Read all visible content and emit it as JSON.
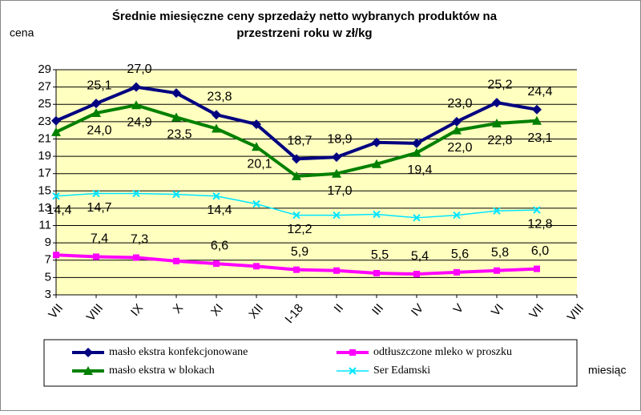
{
  "chart_data": {
    "type": "line",
    "title": [
      "Średnie miesięczne ceny sprzedaży netto  wybranych produktów na",
      "przestrzeni roku w zł/kg"
    ],
    "y_label": "cena",
    "x_label": "miesiąc",
    "categories": [
      "VII",
      "VIII",
      "IX",
      "X",
      "XI",
      "XII",
      "I-18",
      "II",
      "III",
      "IV",
      "V",
      "VI",
      "VII",
      "VIII"
    ],
    "ylim": [
      3,
      29
    ],
    "yticks": [
      3,
      5,
      7,
      9,
      11,
      13,
      15,
      17,
      19,
      21,
      23,
      25,
      27,
      29
    ],
    "grid": true,
    "series": [
      {
        "name": "masło ekstra konfekcjonowane",
        "color": "#000080",
        "marker": "diamond",
        "values": [
          23.1,
          25.1,
          27.0,
          26.3,
          23.8,
          22.7,
          18.7,
          18.9,
          20.6,
          20.5,
          23.0,
          25.2,
          24.4,
          null
        ],
        "value_labels": [
          null,
          "25,1",
          "27,0",
          null,
          "23,8",
          null,
          "18,7",
          "18,9",
          null,
          null,
          "23,0",
          "25,2",
          "24,4",
          null
        ]
      },
      {
        "name": "odtłuszczone mleko w proszku",
        "color": "#ff00ff",
        "marker": "square",
        "values": [
          7.6,
          7.4,
          7.3,
          6.9,
          6.6,
          6.3,
          5.9,
          5.8,
          5.5,
          5.4,
          5.6,
          5.8,
          6.0,
          null
        ],
        "value_labels": [
          null,
          "7,4",
          "7,3",
          null,
          "6,6",
          null,
          "5,9",
          null,
          "5,5",
          "5,4",
          "5,6",
          "5,8",
          "6,0",
          null
        ]
      },
      {
        "name": "masło ekstra w blokach",
        "color": "#008000",
        "marker": "triangle",
        "values": [
          21.8,
          24.0,
          24.9,
          23.5,
          22.2,
          20.1,
          16.7,
          17.0,
          18.1,
          19.4,
          22.0,
          22.8,
          23.1,
          null
        ],
        "value_labels": [
          null,
          "24,0",
          "24,9",
          "23,5",
          null,
          "20,1",
          null,
          "17,0",
          null,
          "19,4",
          "22,0",
          "22,8",
          "23,1",
          null
        ]
      },
      {
        "name": "Ser Edamski",
        "color": "#00e5ff",
        "marker": "x",
        "values": [
          14.4,
          14.7,
          14.7,
          14.6,
          14.4,
          13.5,
          12.2,
          12.2,
          12.3,
          11.9,
          12.2,
          12.7,
          12.8,
          null
        ],
        "value_labels": [
          "14,4",
          "14,7",
          null,
          null,
          "14,4",
          null,
          "12,2",
          null,
          null,
          null,
          null,
          null,
          "12,8",
          null
        ]
      }
    ]
  }
}
